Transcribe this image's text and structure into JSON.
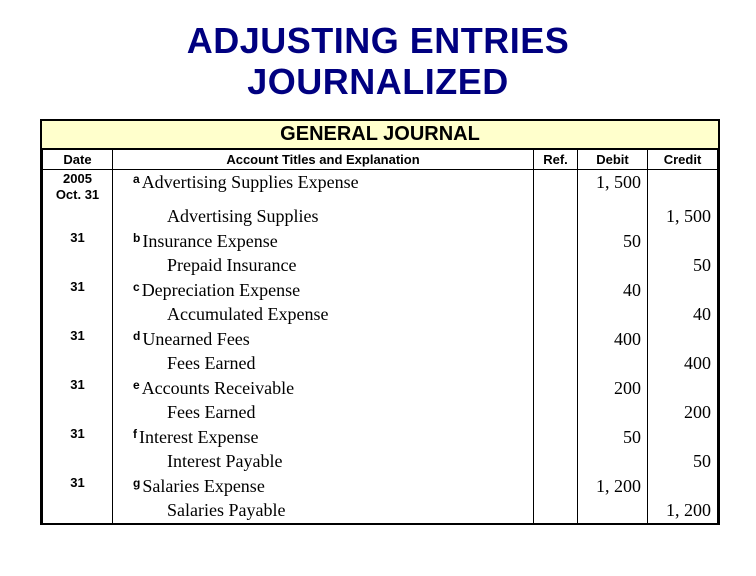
{
  "title_line1": "ADJUSTING ENTRIES",
  "title_line2": "JOURNALIZED",
  "journal_label": "GENERAL JOURNAL",
  "headers": {
    "date": "Date",
    "acct": "Account Titles and Explanation",
    "ref": "Ref.",
    "debit": "Debit",
    "credit": "Credit"
  },
  "year": "2005",
  "first_date": "Oct. 31",
  "sub_date": "31",
  "tags": {
    "a": "a",
    "b": "b",
    "c": "c",
    "d": "d",
    "e": "e",
    "f": "f",
    "g": "g"
  },
  "entries": {
    "a": {
      "debit_acct": "Advertising Supplies Expense",
      "credit_acct": "Advertising Supplies",
      "debit": "1, 500",
      "credit": "1, 500"
    },
    "b": {
      "debit_acct": "Insurance Expense",
      "credit_acct": "Prepaid Insurance",
      "debit": "50",
      "credit": "50"
    },
    "c": {
      "debit_acct": "Depreciation Expense",
      "credit_acct": "Accumulated Expense",
      "debit": "40",
      "credit": "40"
    },
    "d": {
      "debit_acct": "Unearned Fees",
      "credit_acct": "Fees Earned",
      "debit": "400",
      "credit": "400"
    },
    "e": {
      "debit_acct": "Accounts Receivable",
      "credit_acct": "Fees Earned",
      "debit": "200",
      "credit": "200"
    },
    "f": {
      "debit_acct": "Interest Expense",
      "credit_acct": "Interest Payable",
      "debit": "50",
      "credit": "50"
    },
    "g": {
      "debit_acct": "Salaries Expense",
      "credit_acct": "Salaries Payable",
      "debit": "1, 200",
      "credit": "1, 200"
    }
  },
  "colors": {
    "title": "#000080",
    "header_bg": "#ffffcc",
    "border": "#000000",
    "text": "#000000"
  }
}
